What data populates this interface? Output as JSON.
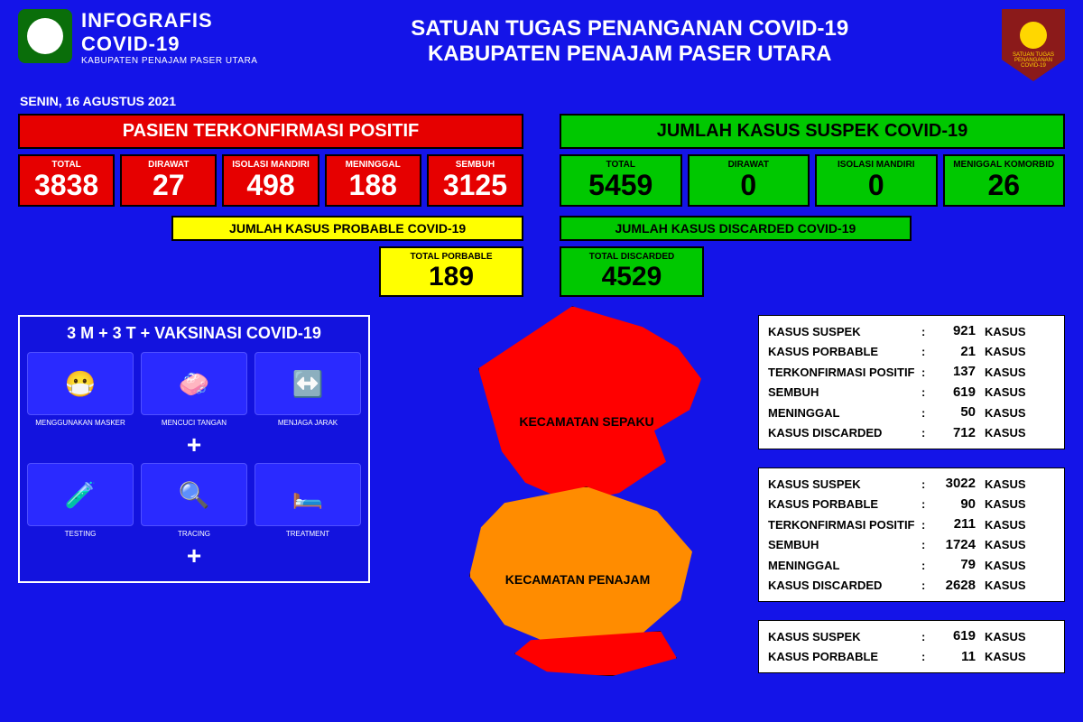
{
  "header": {
    "infografis": "INFOGRAFIS",
    "covid": "COVID-19",
    "kabupaten_sub": "KABUPATEN PENAJAM PASER UTARA",
    "title_line1": "SATUAN TUGAS PENANGANAN COVID-19",
    "title_line2": "KABUPATEN PENAJAM PASER UTARA",
    "badge_line1": "SATUAN TUGAS",
    "badge_line2": "PENANGANAN",
    "badge_line3": "COVID-19"
  },
  "date": "SENIN, 16 AGUSTUS 2021",
  "positif": {
    "title": "PASIEN TERKONFIRMASI POSITIF",
    "stats": [
      {
        "label": "TOTAL",
        "value": "3838"
      },
      {
        "label": "DIRAWAT",
        "value": "27"
      },
      {
        "label": "ISOLASI MANDIRI",
        "value": "498"
      },
      {
        "label": "MENINGGAL",
        "value": "188"
      },
      {
        "label": "SEMBUH",
        "value": "3125"
      }
    ]
  },
  "suspek": {
    "title": "JUMLAH KASUS SUSPEK COVID-19",
    "stats": [
      {
        "label": "TOTAL",
        "value": "5459"
      },
      {
        "label": "DIRAWAT",
        "value": "0"
      },
      {
        "label": "ISOLASI MANDIRI",
        "value": "0"
      },
      {
        "label": "MENIGGAL KOMORBID",
        "value": "26"
      }
    ]
  },
  "probable": {
    "header": "JUMLAH KASUS PROBABLE COVID-19",
    "label": "TOTAL PORBABLE",
    "value": "189"
  },
  "discarded": {
    "header": "JUMLAH KASUS DISCARDED COVID-19",
    "label": "TOTAL DISCARDED",
    "value": "4529"
  },
  "protocol": {
    "title": "3 M + 3 T + VAKSINASI COVID-19",
    "m": [
      {
        "label": "MENGGUNAKAN MASKER",
        "glyph": "😷"
      },
      {
        "label": "MENCUCI TANGAN",
        "glyph": "🧼"
      },
      {
        "label": "MENJAGA JARAK",
        "glyph": "↔️"
      }
    ],
    "t": [
      {
        "label": "TESTING",
        "glyph": "🧪"
      },
      {
        "label": "TRACING",
        "glyph": "🔍"
      },
      {
        "label": "TREATMENT",
        "glyph": "🛏️"
      }
    ],
    "plus": "+"
  },
  "map": {
    "sepaku": "KECAMATAN SEPAKU",
    "penajam": "KECAMATAN PENAJAM",
    "colors": {
      "sepaku": "#ff0000",
      "penajam": "#ff8c00"
    }
  },
  "districts": [
    {
      "rows": [
        {
          "label": "KASUS SUSPEK",
          "value": "921",
          "unit": "KASUS"
        },
        {
          "label": "KASUS PORBABLE",
          "value": "21",
          "unit": "KASUS"
        },
        {
          "label": "TERKONFIRMASI POSITIF",
          "value": "137",
          "unit": "KASUS"
        },
        {
          "label": "SEMBUH",
          "value": "619",
          "unit": "KASUS"
        },
        {
          "label": "MENINGGAL",
          "value": "50",
          "unit": "KASUS"
        },
        {
          "label": "KASUS DISCARDED",
          "value": "712",
          "unit": "KASUS"
        }
      ]
    },
    {
      "rows": [
        {
          "label": "KASUS SUSPEK",
          "value": "3022",
          "unit": "KASUS"
        },
        {
          "label": "KASUS PORBABLE",
          "value": "90",
          "unit": "KASUS"
        },
        {
          "label": "TERKONFIRMASI POSITIF",
          "value": "211",
          "unit": "KASUS"
        },
        {
          "label": "SEMBUH",
          "value": "1724",
          "unit": "KASUS"
        },
        {
          "label": "MENINGGAL",
          "value": "79",
          "unit": "KASUS"
        },
        {
          "label": "KASUS DISCARDED",
          "value": "2628",
          "unit": "KASUS"
        }
      ]
    },
    {
      "rows": [
        {
          "label": "KASUS SUSPEK",
          "value": "619",
          "unit": "KASUS"
        },
        {
          "label": "KASUS PORBABLE",
          "value": "11",
          "unit": "KASUS"
        }
      ]
    }
  ]
}
